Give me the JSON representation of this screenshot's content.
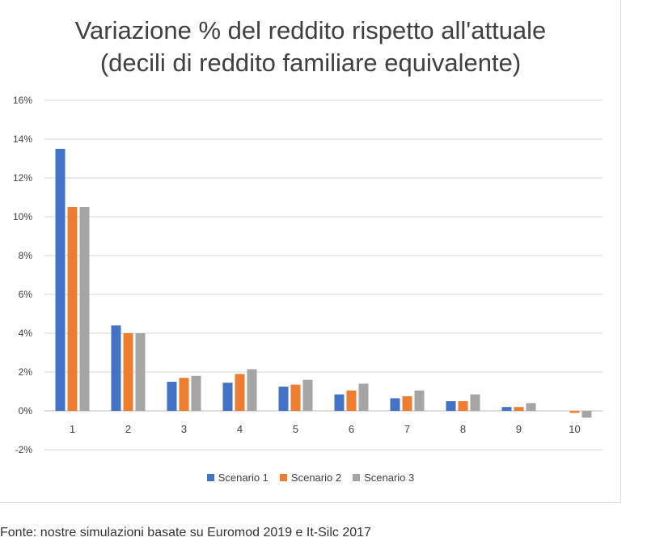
{
  "source_note": "Fonte: nostre simulazioni basate su Euromod 2019 e It-Silc 2017",
  "chart_data": {
    "type": "bar",
    "title_line1": "Variazione % del reddito rispetto all'attuale",
    "title_line2": "(decili di reddito familiare equivalente)",
    "xlabel": "",
    "ylabel": "",
    "categories": [
      "1",
      "2",
      "3",
      "4",
      "5",
      "6",
      "7",
      "8",
      "9",
      "10"
    ],
    "ylim": [
      -2,
      16
    ],
    "yticks": [
      -2,
      0,
      2,
      4,
      6,
      8,
      10,
      12,
      14,
      16
    ],
    "ytick_labels": [
      "-2%",
      "0%",
      "2%",
      "4%",
      "6%",
      "8%",
      "10%",
      "12%",
      "14%",
      "16%"
    ],
    "grid": true,
    "legend_position": "bottom",
    "series": [
      {
        "name": "Scenario 1",
        "color": "#4472C4",
        "values": [
          13.5,
          4.4,
          1.5,
          1.45,
          1.25,
          0.85,
          0.65,
          0.5,
          0.2,
          0.0
        ]
      },
      {
        "name": "Scenario 2",
        "color": "#ED7D31",
        "values": [
          10.5,
          4.0,
          1.7,
          1.9,
          1.35,
          1.05,
          0.75,
          0.5,
          0.2,
          -0.1
        ]
      },
      {
        "name": "Scenario 3",
        "color": "#A5A5A5",
        "values": [
          10.5,
          4.0,
          1.8,
          2.15,
          1.6,
          1.4,
          1.05,
          0.85,
          0.4,
          -0.35
        ]
      }
    ]
  }
}
